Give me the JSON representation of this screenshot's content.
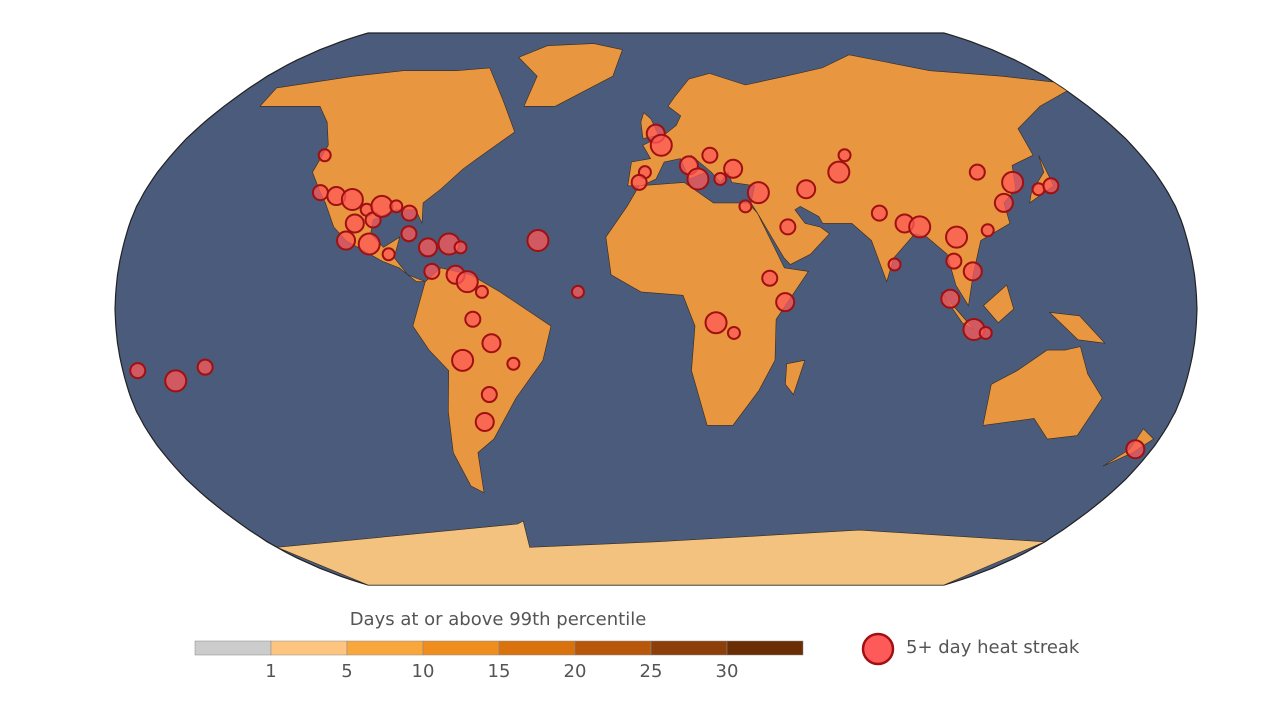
{
  "legend": {
    "title": "Days at or above 99th percentile",
    "ticks": [
      1,
      5,
      10,
      15,
      20,
      25,
      30
    ],
    "colors": [
      "#cccccc",
      "#fdc57f",
      "#f9a73d",
      "#ef8e1e",
      "#d9720d",
      "#b8570a",
      "#8c3f08",
      "#6b2d05"
    ]
  },
  "streak_legend": {
    "label": "5+ day heat streak",
    "fill": "#ff5a5a",
    "stroke": "#a01010"
  },
  "heat_streaks": [
    {
      "lon": -123,
      "lat": 45
    },
    {
      "lon": -118,
      "lat": 34
    },
    {
      "lon": -112,
      "lat": 33
    },
    {
      "lon": -106,
      "lat": 32
    },
    {
      "lon": -100,
      "lat": 29
    },
    {
      "lon": -97,
      "lat": 26
    },
    {
      "lon": -103,
      "lat": 25
    },
    {
      "lon": -95,
      "lat": 30
    },
    {
      "lon": -90,
      "lat": 30
    },
    {
      "lon": -85,
      "lat": 28
    },
    {
      "lon": -105,
      "lat": 20
    },
    {
      "lon": -97,
      "lat": 19
    },
    {
      "lon": -90,
      "lat": 16
    },
    {
      "lon": -84,
      "lat": 22
    },
    {
      "lon": -77,
      "lat": 18
    },
    {
      "lon": -70,
      "lat": 19
    },
    {
      "lon": -66,
      "lat": 18
    },
    {
      "lon": -75,
      "lat": 11
    },
    {
      "lon": -67,
      "lat": 10
    },
    {
      "lon": -63,
      "lat": 8
    },
    {
      "lon": -58,
      "lat": 5
    },
    {
      "lon": -61,
      "lat": -3
    },
    {
      "lon": -55,
      "lat": -10
    },
    {
      "lon": -65,
      "lat": -15
    },
    {
      "lon": -48,
      "lat": -16
    },
    {
      "lon": -57,
      "lat": -25
    },
    {
      "lon": -60,
      "lat": -33
    },
    {
      "lon": -40,
      "lat": 20
    },
    {
      "lon": -26,
      "lat": 5
    },
    {
      "lon": -152,
      "lat": -17
    },
    {
      "lon": -0.1,
      "lat": 51.5
    },
    {
      "lon": 2,
      "lat": 48
    },
    {
      "lon": -4,
      "lat": 40
    },
    {
      "lon": -6,
      "lat": 37
    },
    {
      "lon": 12,
      "lat": 42
    },
    {
      "lon": 15,
      "lat": 38
    },
    {
      "lon": 23,
      "lat": 38
    },
    {
      "lon": 20,
      "lat": 45
    },
    {
      "lon": 28,
      "lat": 41
    },
    {
      "lon": 36,
      "lat": 34
    },
    {
      "lon": 31,
      "lat": 30
    },
    {
      "lon": 45,
      "lat": 24
    },
    {
      "lon": 53,
      "lat": 35
    },
    {
      "lon": 66,
      "lat": 40
    },
    {
      "lon": 70,
      "lat": 45
    },
    {
      "lon": 77,
      "lat": 28
    },
    {
      "lon": 85,
      "lat": 25
    },
    {
      "lon": 90,
      "lat": 24
    },
    {
      "lon": 80,
      "lat": 13
    },
    {
      "lon": 100,
      "lat": 14
    },
    {
      "lon": 106,
      "lat": 11
    },
    {
      "lon": 102,
      "lat": 21
    },
    {
      "lon": 113,
      "lat": 23
    },
    {
      "lon": 116,
      "lat": 40
    },
    {
      "lon": 121,
      "lat": 31
    },
    {
      "lon": 127,
      "lat": 37
    },
    {
      "lon": 135,
      "lat": 35
    },
    {
      "lon": 140,
      "lat": 36
    },
    {
      "lon": 98,
      "lat": 3
    },
    {
      "lon": 106,
      "lat": -6
    },
    {
      "lon": 110,
      "lat": -7
    },
    {
      "lon": 38,
      "lat": 9
    },
    {
      "lon": 43,
      "lat": 2
    },
    {
      "lon": 20,
      "lat": -4
    },
    {
      "lon": 26,
      "lat": -7
    },
    {
      "lon": -175,
      "lat": -18
    },
    {
      "lon": 174,
      "lat": -41
    },
    {
      "lon": -163,
      "lat": -21
    }
  ]
}
